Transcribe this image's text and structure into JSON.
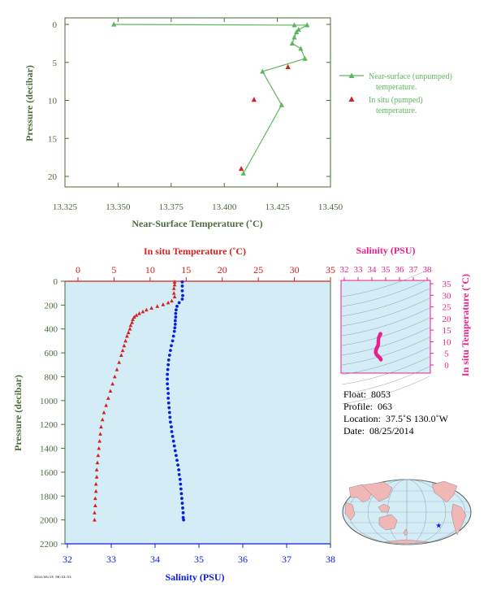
{
  "chart_data": [
    {
      "type": "line",
      "xlabel": "Near-Surface Temperature (˚C)",
      "ylabel": "Pressure (decibar)",
      "xlim": [
        13.325,
        13.45
      ],
      "ylim": [
        0,
        22
      ],
      "y_inverted": true,
      "xticks": [
        "13.325",
        "13.350",
        "13.375",
        "13.400",
        "13.425",
        "13.450"
      ],
      "yticks": [
        "0",
        "5",
        "10",
        "15",
        "20"
      ],
      "grid": false,
      "legend": "right",
      "series": [
        {
          "name": "Near-surface (unpumped) temperature.",
          "color": "#5cb85c",
          "marker": "triangle",
          "points": [
            [
              13.348,
              0.0
            ],
            [
              13.433,
              0.1
            ],
            [
              13.439,
              0.1
            ],
            [
              13.435,
              0.7
            ],
            [
              13.434,
              1.0
            ],
            [
              13.433,
              1.7
            ],
            [
              13.432,
              2.5
            ],
            [
              13.436,
              3.2
            ],
            [
              13.438,
              4.5
            ],
            [
              13.418,
              6.2
            ],
            [
              13.427,
              10.6
            ],
            [
              13.409,
              19.6
            ]
          ]
        },
        {
          "name": "In situ (pumped) temperature.",
          "color": "#d62020",
          "marker": "triangle",
          "points": [
            [
              13.43,
              5.6
            ],
            [
              13.414,
              9.9
            ],
            [
              13.408,
              19.0
            ]
          ]
        }
      ]
    },
    {
      "type": "line",
      "title": "",
      "xlabel_top": "In situ Temperature (˚C)",
      "xlabel_bottom": "Salinity (PSU)",
      "ylabel": "Pressure (decibar)",
      "xlim_temperature": [
        0,
        35
      ],
      "xlim_salinity": [
        32,
        38
      ],
      "ylim": [
        0,
        2200
      ],
      "y_inverted": true,
      "xticks_temperature": [
        "0",
        "5",
        "10",
        "15",
        "20",
        "25",
        "30",
        "35"
      ],
      "xticks_salinity": [
        "32",
        "33",
        "34",
        "35",
        "36",
        "37",
        "38"
      ],
      "yticks": [
        "0",
        "200",
        "400",
        "600",
        "800",
        "1000",
        "1200",
        "1400",
        "1600",
        "1800",
        "2000",
        "2200"
      ],
      "background": "#d3ecf6",
      "series": [
        {
          "name": "In situ Temperature",
          "color": "#d62020",
          "marker": "triangle",
          "axis": "temperature",
          "points": [
            [
              13.4,
              6
            ],
            [
              13.4,
              30
            ],
            [
              13.3,
              60
            ],
            [
              13.3,
              100
            ],
            [
              13.4,
              130
            ],
            [
              13.0,
              165
            ],
            [
              12.5,
              180
            ],
            [
              11.8,
              195
            ],
            [
              11.0,
              210
            ],
            [
              10.2,
              225
            ],
            [
              9.5,
              240
            ],
            [
              9.0,
              255
            ],
            [
              8.5,
              270
            ],
            [
              8.1,
              285
            ],
            [
              7.8,
              300
            ],
            [
              7.6,
              320
            ],
            [
              7.5,
              345
            ],
            [
              7.3,
              370
            ],
            [
              7.2,
              400
            ],
            [
              7.0,
              430
            ],
            [
              6.8,
              460
            ],
            [
              6.6,
              500
            ],
            [
              6.4,
              540
            ],
            [
              6.2,
              580
            ],
            [
              6.0,
              620
            ],
            [
              5.7,
              680
            ],
            [
              5.4,
              740
            ],
            [
              5.1,
              800
            ],
            [
              4.8,
              860
            ],
            [
              4.5,
              920
            ],
            [
              4.2,
              980
            ],
            [
              3.9,
              1040
            ],
            [
              3.6,
              1100
            ],
            [
              3.4,
              1160
            ],
            [
              3.2,
              1220
            ],
            [
              3.1,
              1280
            ],
            [
              3.0,
              1340
            ],
            [
              2.9,
              1400
            ],
            [
              2.8,
              1460
            ],
            [
              2.7,
              1520
            ],
            [
              2.6,
              1580
            ],
            [
              2.6,
              1640
            ],
            [
              2.5,
              1700
            ],
            [
              2.5,
              1760
            ],
            [
              2.4,
              1820
            ],
            [
              2.4,
              1880
            ],
            [
              2.3,
              1940
            ],
            [
              2.3,
              2000
            ]
          ]
        },
        {
          "name": "Salinity",
          "color": "#0a1ee0",
          "marker": "circle",
          "axis": "salinity",
          "points": [
            [
              34.62,
              6
            ],
            [
              34.62,
              40
            ],
            [
              34.62,
              80
            ],
            [
              34.63,
              120
            ],
            [
              34.62,
              150
            ],
            [
              34.55,
              180
            ],
            [
              34.5,
              210
            ],
            [
              34.48,
              240
            ],
            [
              34.47,
              270
            ],
            [
              34.47,
              300
            ],
            [
              34.46,
              330
            ],
            [
              34.46,
              360
            ],
            [
              34.45,
              390
            ],
            [
              34.44,
              420
            ],
            [
              34.42,
              460
            ],
            [
              34.4,
              500
            ],
            [
              34.37,
              540
            ],
            [
              34.35,
              580
            ],
            [
              34.33,
              620
            ],
            [
              34.31,
              660
            ],
            [
              34.3,
              700
            ],
            [
              34.29,
              740
            ],
            [
              34.28,
              780
            ],
            [
              34.28,
              820
            ],
            [
              34.28,
              860
            ],
            [
              34.29,
              900
            ],
            [
              34.3,
              940
            ],
            [
              34.3,
              980
            ],
            [
              34.31,
              1020
            ],
            [
              34.32,
              1060
            ],
            [
              34.33,
              1100
            ],
            [
              34.34,
              1140
            ],
            [
              34.35,
              1180
            ],
            [
              34.37,
              1220
            ],
            [
              34.38,
              1260
            ],
            [
              34.4,
              1300
            ],
            [
              34.42,
              1340
            ],
            [
              34.44,
              1380
            ],
            [
              34.46,
              1420
            ],
            [
              34.48,
              1460
            ],
            [
              34.5,
              1500
            ],
            [
              34.52,
              1540
            ],
            [
              34.54,
              1580
            ],
            [
              34.55,
              1620
            ],
            [
              34.57,
              1660
            ],
            [
              34.58,
              1700
            ],
            [
              34.59,
              1740
            ],
            [
              34.6,
              1780
            ],
            [
              34.61,
              1820
            ],
            [
              34.62,
              1860
            ],
            [
              34.63,
              1900
            ],
            [
              34.64,
              1940
            ],
            [
              34.64,
              1980
            ],
            [
              34.65,
              2000
            ]
          ]
        }
      ]
    },
    {
      "type": "scatter",
      "xlabel": "Salinity (PSU)",
      "ylabel": "In situ Temperature (˚C)",
      "xlim": [
        32,
        38
      ],
      "ylim": [
        0,
        35
      ],
      "xticks": [
        "32",
        "33",
        "34",
        "35",
        "36",
        "37",
        "38"
      ],
      "yticks": [
        "0",
        "5",
        "10",
        "15",
        "20",
        "25",
        "30",
        "35"
      ],
      "background": "#d3ecf6",
      "series": [
        {
          "name": "T-S",
          "color": "#e8208c",
          "points": [
            [
              34.65,
              2.3
            ],
            [
              34.63,
              2.6
            ],
            [
              34.6,
              2.9
            ],
            [
              34.56,
              3.2
            ],
            [
              34.5,
              3.5
            ],
            [
              34.44,
              3.9
            ],
            [
              34.38,
              4.2
            ],
            [
              34.33,
              4.6
            ],
            [
              34.3,
              5.0
            ],
            [
              34.28,
              5.4
            ],
            [
              34.28,
              5.8
            ],
            [
              34.29,
              6.2
            ],
            [
              34.31,
              6.6
            ],
            [
              34.33,
              7.0
            ],
            [
              34.36,
              7.4
            ],
            [
              34.4,
              7.8
            ],
            [
              34.44,
              8.3
            ],
            [
              34.46,
              8.9
            ],
            [
              34.47,
              9.5
            ],
            [
              34.47,
              10.2
            ],
            [
              34.48,
              11.0
            ],
            [
              34.5,
              11.8
            ],
            [
              34.55,
              12.5
            ],
            [
              34.6,
              13.0
            ],
            [
              34.62,
              13.3
            ],
            [
              34.62,
              13.4
            ]
          ]
        }
      ]
    }
  ],
  "panels": {
    "top": {
      "xlabel": "Near-Surface Temperature (˚C)",
      "ylabel": "Pressure (decibar)",
      "legend": [
        {
          "line1": "Near-surface (unpumped)",
          "line2": "temperature."
        },
        {
          "line1": "In situ (pumped)",
          "line2": "temperature."
        }
      ]
    },
    "main": {
      "xlabel_top": "In situ Temperature (˚C)",
      "xlabel_bottom": "Salinity (PSU)",
      "ylabel": "Pressure (decibar)"
    },
    "ts": {
      "xlabel": "Salinity (PSU)",
      "ylabel": "In situ Temperature (˚C)"
    }
  },
  "colors": {
    "axis_green": "#4a6b3a",
    "top_series": "#5cb85c",
    "temperature": "#d62020",
    "salinity": "#0a1ee0",
    "ts_points": "#e8208c",
    "plot_bg": "#d3ecf6",
    "land": "#f1b6b6",
    "ocean": "#d3ecf6"
  },
  "info": {
    "float_label": "Float:",
    "float_value": "8053",
    "profile_label": "Profile:",
    "profile_value": "063",
    "location_label": "Location:",
    "location_value": "37.5˚S  130.0˚W",
    "date_label": "Date:",
    "date_value": "08/25/2014"
  },
  "footer_code": "2014/08/25 08:53:53",
  "map": {
    "marker_symbol": "★",
    "marker_lon": -130.0,
    "marker_lat": -37.5
  }
}
